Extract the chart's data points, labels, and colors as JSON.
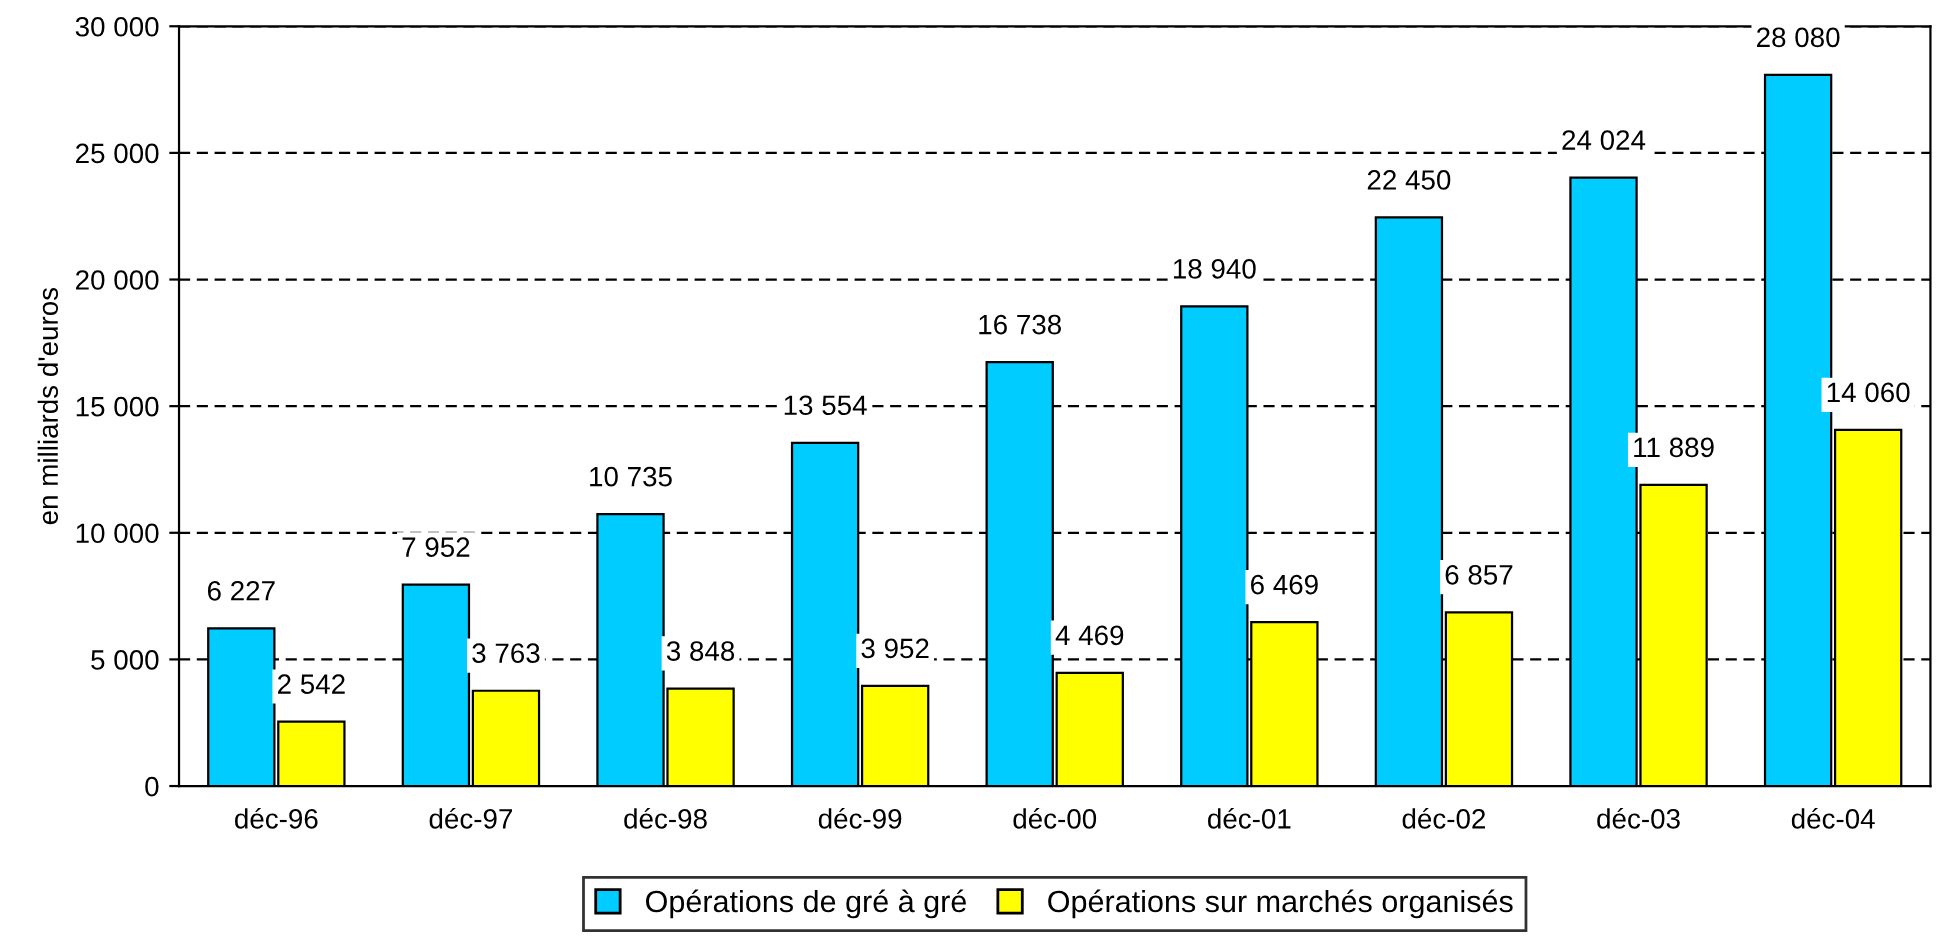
{
  "chart_data": {
    "type": "bar",
    "ylabel": "en milliards d'euros",
    "categories": [
      "déc-96",
      "déc-97",
      "déc-98",
      "déc-99",
      "déc-00",
      "déc-01",
      "déc-02",
      "déc-03",
      "déc-04"
    ],
    "series": [
      {
        "name": "Opérations de gré à gré",
        "color": "#00ccff",
        "values": [
          6227,
          7952,
          10735,
          13554,
          16738,
          18940,
          22450,
          24024,
          28080
        ],
        "value_labels": [
          "6 227",
          "7 952",
          "10 735",
          "13 554",
          "16 738",
          "18 940",
          "22 450",
          "24 024",
          "28 080"
        ]
      },
      {
        "name": "Opérations sur marchés organisés",
        "color": "#ffff00",
        "values": [
          2542,
          3763,
          3848,
          3952,
          4469,
          6469,
          6857,
          11889,
          14060
        ],
        "value_labels": [
          "2 542",
          "3 763",
          "3 848",
          "3 952",
          "4 469",
          "6 469",
          "6 857",
          "11 889",
          "14 060"
        ]
      }
    ],
    "ylim": [
      0,
      30000
    ],
    "yticks": [
      0,
      {
        "value": 5000,
        "label": "5 000"
      },
      {
        "value": 10000,
        "label": "10 000"
      },
      {
        "value": 15000,
        "label": "15 000"
      },
      {
        "value": 20000,
        "label": "20 000"
      },
      {
        "value": 25000,
        "label": "25 000"
      },
      {
        "value": 30000,
        "label": "30 000"
      }
    ],
    "grid": "y",
    "legend": "bottom"
  }
}
